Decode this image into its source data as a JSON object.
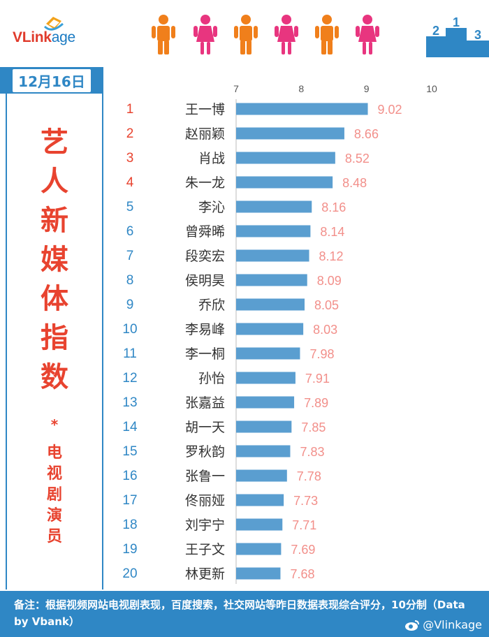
{
  "brand": {
    "logo_text_a": "VLink",
    "logo_text_b": "age"
  },
  "date_label": "12月16日",
  "title_vertical": "艺人新媒体指数",
  "title_star": "*",
  "subtitle_vertical": "电视剧演员",
  "footer": {
    "note": "备注：根据视频网站电视剧表现，百度搜索，社交网站等昨日数据表现综合评分，10分制（Data by Vbank）",
    "weibo_handle": "@Vlinkage"
  },
  "colors": {
    "bar": "#5a9ed0",
    "value_text": "#f28f8a",
    "rank_top": "#e8432f",
    "rank_rest": "#2f87c5",
    "accent": "#2f87c5",
    "male_icon": "#f07f1b",
    "female_icon": "#e8357f"
  },
  "icons": [
    "male-person-icon",
    "female-person-icon",
    "podium-icon",
    "weibo-icon"
  ],
  "chart_data": {
    "type": "bar",
    "orientation": "horizontal",
    "xlim": [
      7,
      10
    ],
    "xticks": [
      7,
      8,
      9,
      10
    ],
    "grid": false,
    "categories": [
      "王一博",
      "赵丽颖",
      "肖战",
      "朱一龙",
      "李沁",
      "曾舜晞",
      "段奕宏",
      "侯明昊",
      "乔欣",
      "李易峰",
      "李一桐",
      "孙怡",
      "张嘉益",
      "胡一天",
      "罗秋韵",
      "张鲁一",
      "佟丽娅",
      "刘宇宁",
      "王子文",
      "林更新"
    ],
    "ranks": [
      "1",
      "2",
      "3",
      "4",
      "5",
      "6",
      "7",
      "8",
      "9",
      "10",
      "11",
      "12",
      "13",
      "14",
      "15",
      "16",
      "17",
      "18",
      "19",
      "20"
    ],
    "values": [
      9.02,
      8.66,
      8.52,
      8.48,
      8.16,
      8.14,
      8.12,
      8.09,
      8.05,
      8.03,
      7.98,
      7.91,
      7.89,
      7.85,
      7.83,
      7.78,
      7.73,
      7.71,
      7.69,
      7.68
    ],
    "value_labels": [
      "9.02",
      "8.66",
      "8.52",
      "8.48",
      "8.16",
      "8.14",
      "8.12",
      "8.09",
      "8.05",
      "8.03",
      "7.98",
      "7.91",
      "7.89",
      "7.85",
      "7.83",
      "7.78",
      "7.73",
      "7.71",
      "7.69",
      "7.68"
    ]
  }
}
